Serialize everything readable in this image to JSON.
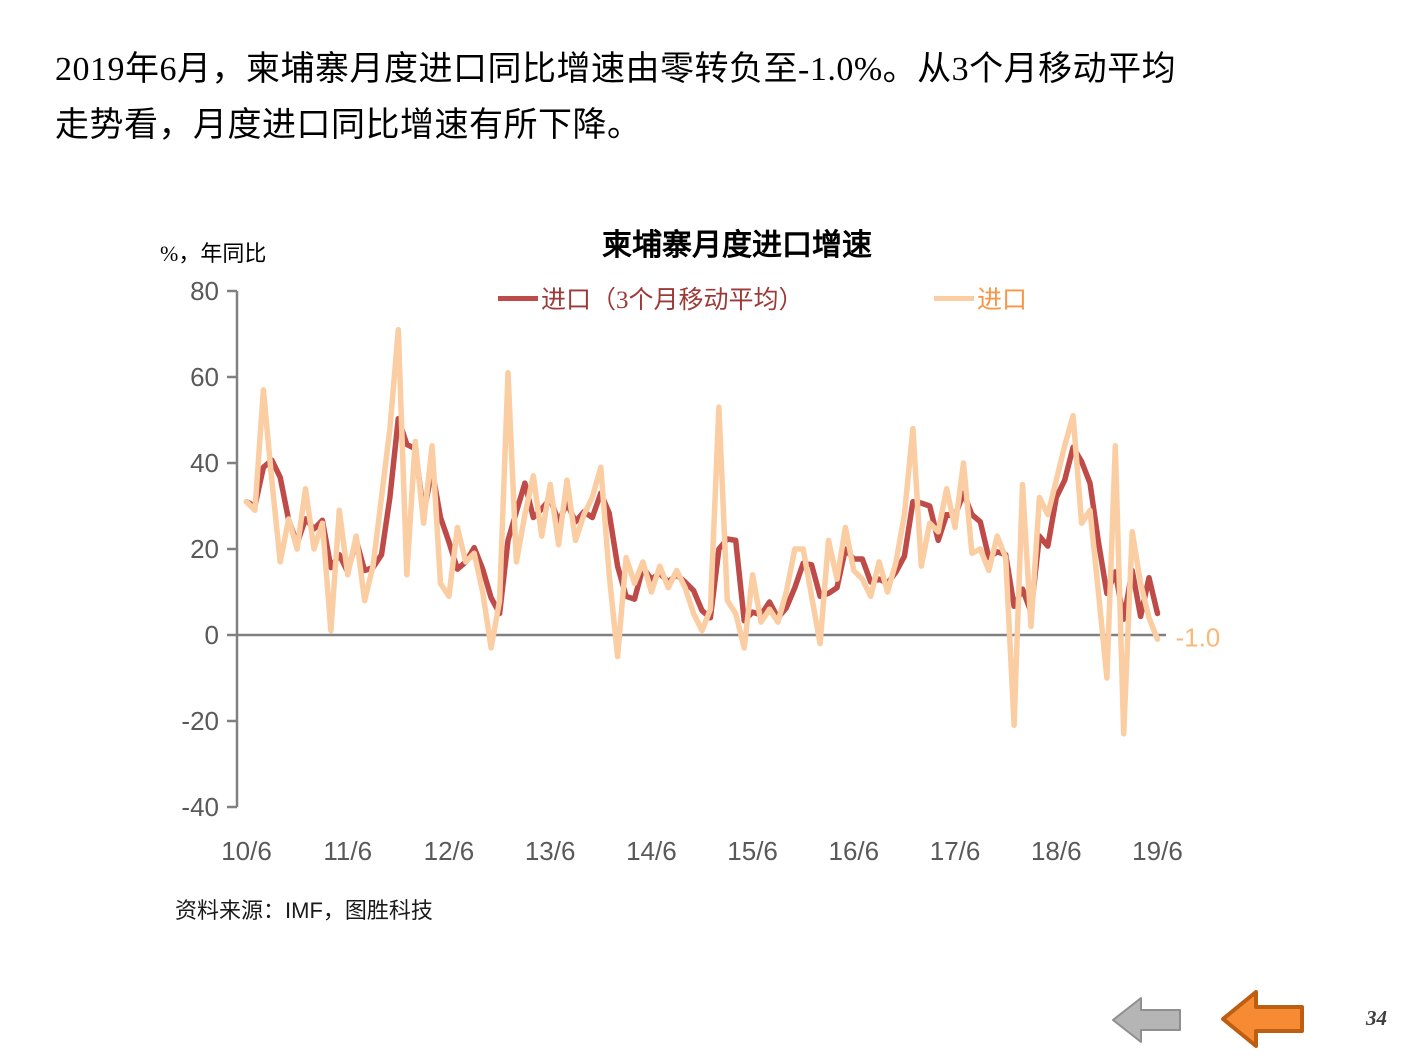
{
  "page": {
    "heading_line1": "2019年6月，柬埔寨月度进口同比增速由零转负至-1.0%。从3个月移动平均",
    "heading_line2": "走势看，月度进口同比增速有所下降。",
    "source": "资料来源：IMF，图胜科技",
    "page_number": "34"
  },
  "chart": {
    "title": "柬埔寨月度进口增速",
    "y_unit_label": "%，年同比",
    "legend": {
      "ma_label": "进口（3个月移动平均）",
      "ma_text_color": "#9c3a38",
      "raw_label": "进口",
      "raw_text_color": "#f79646"
    },
    "annotation": {
      "text": "-1.0",
      "color": "#f9b878"
    },
    "axis_text_color": "#595959",
    "axis_line_color": "#808080"
  },
  "chart_data": {
    "type": "line",
    "title": "柬埔寨月度进口增速",
    "ylabel": "%，年同比",
    "ylim": [
      -40,
      80
    ],
    "y_ticks": [
      80,
      60,
      40,
      20,
      0,
      -20,
      -40
    ],
    "x_tick_labels": [
      "10/6",
      "11/6",
      "12/6",
      "13/6",
      "14/6",
      "15/6",
      "16/6",
      "17/6",
      "18/6",
      "19/6"
    ],
    "x_start": "2010-06",
    "x_frequency": "monthly",
    "legend_position": "top",
    "grid": false,
    "series": [
      {
        "name": "进口",
        "color": "#fbcda3",
        "values": [
          31,
          29,
          57,
          36,
          17,
          27,
          20,
          34,
          20,
          26,
          1,
          29,
          14,
          23,
          8,
          16,
          32,
          48,
          71,
          14,
          45,
          26,
          44,
          12,
          9,
          25,
          17,
          19,
          10,
          -3,
          8,
          61,
          17,
          28,
          37,
          23,
          35,
          21,
          36,
          22,
          28,
          32,
          39,
          14,
          -5,
          18,
          12,
          17,
          10,
          16,
          11,
          15,
          11,
          5,
          1,
          6,
          53,
          8,
          5,
          -3,
          14,
          3,
          6,
          3,
          10,
          20,
          20,
          9,
          -2,
          22,
          13,
          25,
          15,
          13,
          9,
          17,
          10,
          17,
          28,
          48,
          16,
          26,
          24,
          34,
          25,
          40,
          19,
          20,
          15,
          23,
          18,
          -21,
          35,
          2,
          32,
          28,
          36,
          44,
          51,
          26,
          29,
          10,
          -10,
          44,
          -23,
          24,
          12,
          4,
          -1
        ]
      },
      {
        "name": "进口（3个月移动平均）",
        "color": "#be4b48",
        "derived": "3-month moving average of 进口"
      }
    ],
    "last_value_annotation": -1.0
  }
}
